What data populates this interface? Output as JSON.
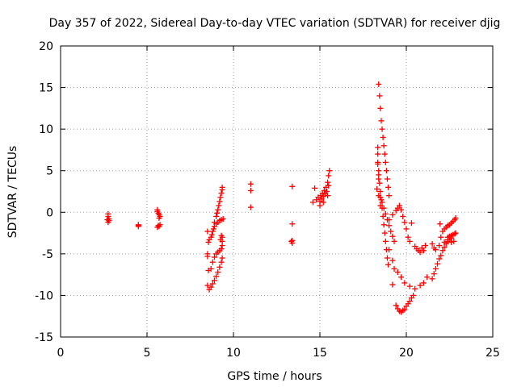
{
  "chart_data": {
    "type": "scatter",
    "title": "Day 357 of 2022, Sidereal Day-to-day VTEC variation (SDTVAR) for receiver djig",
    "xlabel": "GPS time / hours",
    "ylabel": "SDTVAR / TECUs",
    "xlim": [
      0,
      25
    ],
    "ylim": [
      -15,
      20
    ],
    "xticks": [
      "0",
      "5",
      "10",
      "15",
      "20",
      "25"
    ],
    "yticks": [
      "-15",
      "-10",
      "-5",
      "0",
      "5",
      "10",
      "15",
      "20"
    ],
    "grid": true,
    "marker": "+",
    "color": "#ff0000",
    "series": [
      {
        "name": "SDTVAR",
        "points": [
          [
            2.75,
            -0.2
          ],
          [
            2.75,
            -0.5
          ],
          [
            2.8,
            -0.8
          ],
          [
            2.8,
            -1.0
          ],
          [
            2.75,
            -1.2
          ],
          [
            2.7,
            -0.9
          ],
          [
            4.5,
            -1.5
          ],
          [
            4.5,
            -1.7
          ],
          [
            4.5,
            -1.6
          ],
          [
            5.6,
            0.1
          ],
          [
            5.65,
            -0.1
          ],
          [
            5.7,
            -0.3
          ],
          [
            5.75,
            -0.5
          ],
          [
            5.6,
            0.3
          ],
          [
            5.7,
            -0.7
          ],
          [
            5.65,
            -1.6
          ],
          [
            5.7,
            -1.7
          ],
          [
            5.75,
            -1.5
          ],
          [
            5.6,
            -1.8
          ],
          [
            8.5,
            -2.3
          ],
          [
            8.5,
            -5.0
          ],
          [
            8.5,
            -5.3
          ],
          [
            8.55,
            -7.0
          ],
          [
            8.5,
            -8.8
          ],
          [
            8.6,
            -9.3
          ],
          [
            8.7,
            -9.0
          ],
          [
            8.8,
            -8.6
          ],
          [
            8.9,
            -8.2
          ],
          [
            9.0,
            -7.7
          ],
          [
            9.1,
            -7.2
          ],
          [
            9.2,
            -6.6
          ],
          [
            9.3,
            -6.0
          ],
          [
            9.35,
            -5.5
          ],
          [
            8.7,
            -6.8
          ],
          [
            8.8,
            -6.0
          ],
          [
            8.9,
            -5.4
          ],
          [
            9.0,
            -5.0
          ],
          [
            9.1,
            -4.8
          ],
          [
            9.2,
            -4.6
          ],
          [
            9.3,
            -4.4
          ],
          [
            9.35,
            -4.0
          ],
          [
            9.35,
            -3.5
          ],
          [
            9.35,
            -3.0
          ],
          [
            9.3,
            -2.8
          ],
          [
            9.25,
            -3.3
          ],
          [
            8.7,
            -3.0
          ],
          [
            8.75,
            -2.7
          ],
          [
            8.8,
            -2.3
          ],
          [
            8.85,
            -2.0
          ],
          [
            8.9,
            -1.7
          ],
          [
            9.0,
            -1.4
          ],
          [
            9.1,
            -1.2
          ],
          [
            9.2,
            -1.0
          ],
          [
            9.3,
            -0.9
          ],
          [
            9.4,
            -0.8
          ],
          [
            8.9,
            -1.2
          ],
          [
            9.0,
            -0.5
          ],
          [
            9.05,
            -0.1
          ],
          [
            9.1,
            0.3
          ],
          [
            9.15,
            0.8
          ],
          [
            9.2,
            1.3
          ],
          [
            9.25,
            1.8
          ],
          [
            9.3,
            2.3
          ],
          [
            9.35,
            2.7
          ],
          [
            9.35,
            3.0
          ],
          [
            8.6,
            -3.3
          ],
          [
            8.55,
            -3.6
          ],
          [
            11.0,
            3.4
          ],
          [
            11.0,
            2.6
          ],
          [
            11.0,
            0.6
          ],
          [
            13.4,
            3.1
          ],
          [
            13.4,
            -1.4
          ],
          [
            13.4,
            -3.4
          ],
          [
            13.4,
            -3.7
          ],
          [
            13.35,
            -3.5
          ],
          [
            14.6,
            1.2
          ],
          [
            14.7,
            2.9
          ],
          [
            14.8,
            1.5
          ],
          [
            14.9,
            1.8
          ],
          [
            15.0,
            1.3
          ],
          [
            15.05,
            2.0
          ],
          [
            15.1,
            1.6
          ],
          [
            15.15,
            2.3
          ],
          [
            15.2,
            1.9
          ],
          [
            15.25,
            2.6
          ],
          [
            15.3,
            2.2
          ],
          [
            15.35,
            3.0
          ],
          [
            15.4,
            2.5
          ],
          [
            15.45,
            3.6
          ],
          [
            15.5,
            4.4
          ],
          [
            15.55,
            5.0
          ],
          [
            15.5,
            3.2
          ],
          [
            15.45,
            2.0
          ],
          [
            15.2,
            1.2
          ],
          [
            15.0,
            0.8
          ],
          [
            18.4,
            15.4
          ],
          [
            18.45,
            14.0
          ],
          [
            18.5,
            12.5
          ],
          [
            18.55,
            11.0
          ],
          [
            18.6,
            10.0
          ],
          [
            18.65,
            9.0
          ],
          [
            18.7,
            8.0
          ],
          [
            18.75,
            7.0
          ],
          [
            18.8,
            6.0
          ],
          [
            18.85,
            5.0
          ],
          [
            18.9,
            4.0
          ],
          [
            18.95,
            3.0
          ],
          [
            19.0,
            2.0
          ],
          [
            18.35,
            7.8
          ],
          [
            18.35,
            7.0
          ],
          [
            18.35,
            6.0
          ],
          [
            18.4,
            5.0
          ],
          [
            18.4,
            4.0
          ],
          [
            18.35,
            5.8
          ],
          [
            18.4,
            4.5
          ],
          [
            18.45,
            3.5
          ],
          [
            18.5,
            2.5
          ],
          [
            18.55,
            1.5
          ],
          [
            18.6,
            0.5
          ],
          [
            18.65,
            -0.5
          ],
          [
            18.7,
            -1.5
          ],
          [
            18.75,
            -2.5
          ],
          [
            18.8,
            -3.5
          ],
          [
            18.85,
            -4.5
          ],
          [
            18.9,
            -5.5
          ],
          [
            18.95,
            -6.3
          ],
          [
            18.5,
            1.8
          ],
          [
            18.6,
            1.2
          ],
          [
            18.7,
            0.5
          ],
          [
            18.8,
            -0.2
          ],
          [
            18.9,
            -0.9
          ],
          [
            19.0,
            -1.6
          ],
          [
            19.1,
            -2.3
          ],
          [
            19.2,
            -2.9
          ],
          [
            19.3,
            -3.5
          ],
          [
            18.3,
            2.8
          ],
          [
            18.4,
            2.0
          ],
          [
            18.5,
            0.8
          ],
          [
            19.0,
            -0.9
          ],
          [
            19.2,
            -0.3
          ],
          [
            19.4,
            0.2
          ],
          [
            19.5,
            0.5
          ],
          [
            19.6,
            0.8
          ],
          [
            19.7,
            0.3
          ],
          [
            19.8,
            -0.5
          ],
          [
            19.9,
            -1.2
          ],
          [
            20.0,
            -2.0
          ],
          [
            20.1,
            -3.0
          ],
          [
            20.2,
            -3.5
          ],
          [
            19.0,
            -4.5
          ],
          [
            19.2,
            -5.8
          ],
          [
            19.3,
            -6.8
          ],
          [
            19.5,
            -7.2
          ],
          [
            19.7,
            -7.8
          ],
          [
            19.9,
            -8.5
          ],
          [
            20.2,
            -8.9
          ],
          [
            20.5,
            -9.2
          ],
          [
            20.8,
            -8.8
          ],
          [
            21.0,
            -8.5
          ],
          [
            21.2,
            -7.8
          ],
          [
            19.2,
            -8.7
          ],
          [
            19.4,
            -11.2
          ],
          [
            19.5,
            -11.6
          ],
          [
            19.6,
            -11.9
          ],
          [
            19.7,
            -12.0
          ],
          [
            19.8,
            -11.8
          ],
          [
            19.9,
            -11.7
          ],
          [
            20.0,
            -11.3
          ],
          [
            20.1,
            -11.0
          ],
          [
            20.2,
            -10.7
          ],
          [
            20.3,
            -10.3
          ],
          [
            20.4,
            -10.0
          ],
          [
            20.5,
            -4.1
          ],
          [
            20.6,
            -4.4
          ],
          [
            20.7,
            -4.6
          ],
          [
            20.8,
            -4.8
          ],
          [
            20.9,
            -4.3
          ],
          [
            21.0,
            -4.6
          ],
          [
            21.1,
            -4.0
          ],
          [
            20.3,
            -1.3
          ],
          [
            21.5,
            -8.0
          ],
          [
            21.6,
            -7.4
          ],
          [
            21.7,
            -6.8
          ],
          [
            21.8,
            -6.2
          ],
          [
            21.9,
            -5.6
          ],
          [
            22.0,
            -5.2
          ],
          [
            22.1,
            -4.6
          ],
          [
            22.2,
            -4.2
          ],
          [
            22.3,
            -3.8
          ],
          [
            22.4,
            -3.5
          ],
          [
            22.5,
            -3.3
          ],
          [
            22.6,
            -3.1
          ],
          [
            21.5,
            -3.8
          ],
          [
            21.6,
            -4.3
          ],
          [
            21.7,
            -4.5
          ],
          [
            21.9,
            -4.0
          ],
          [
            22.2,
            -3.6
          ],
          [
            22.4,
            -3.3
          ],
          [
            22.6,
            -3.6
          ],
          [
            22.75,
            -3.5
          ],
          [
            22.1,
            -2.3
          ],
          [
            22.2,
            -2.0
          ],
          [
            22.3,
            -1.8
          ],
          [
            22.4,
            -1.6
          ],
          [
            22.5,
            -1.5
          ],
          [
            22.6,
            -1.3
          ],
          [
            22.7,
            -1.1
          ],
          [
            22.8,
            -0.9
          ],
          [
            22.85,
            -0.7
          ],
          [
            22.0,
            -3.0
          ],
          [
            22.4,
            -3.0
          ],
          [
            22.5,
            -2.9
          ],
          [
            22.6,
            -2.8
          ],
          [
            22.7,
            -2.7
          ],
          [
            22.8,
            -2.6
          ],
          [
            22.85,
            -2.5
          ],
          [
            21.95,
            -1.4
          ]
        ]
      }
    ]
  }
}
